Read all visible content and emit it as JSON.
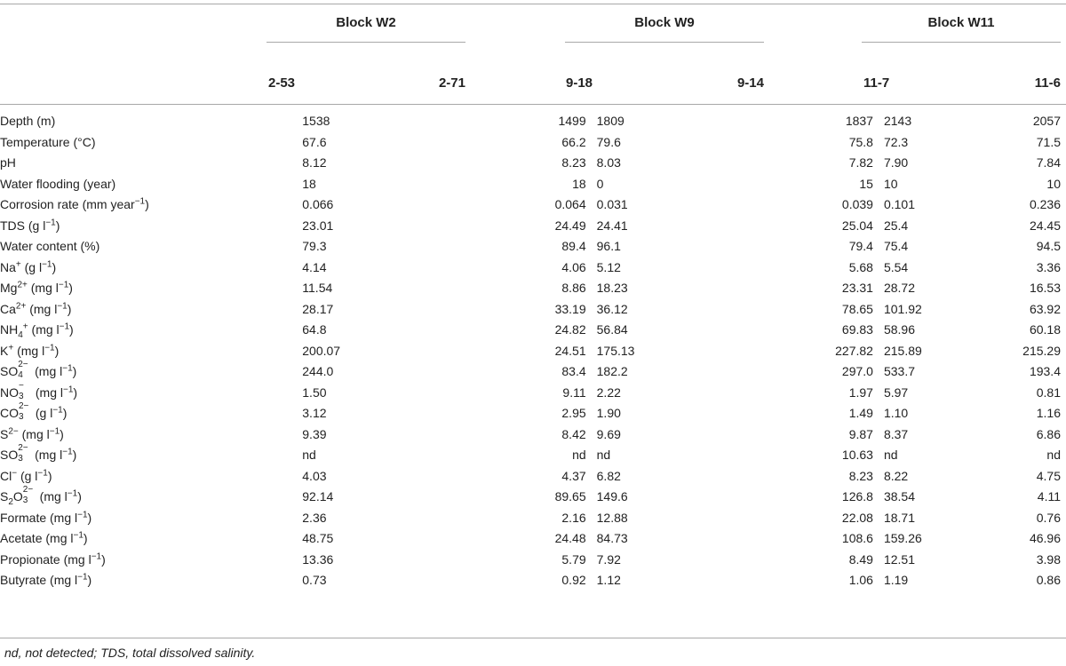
{
  "groups": [
    {
      "label": "Block W2",
      "cols": [
        "2-53",
        "2-71"
      ]
    },
    {
      "label": "Block W9",
      "cols": [
        "9-18",
        "9-14"
      ]
    },
    {
      "label": "Block W11",
      "cols": [
        "11-7",
        "11-6"
      ]
    }
  ],
  "rows": [
    {
      "name": "Depth (m)",
      "values": [
        "1538",
        "1499",
        "1809",
        "1837",
        "2143",
        "2057"
      ]
    },
    {
      "name": "Temperature (°C)",
      "values": [
        "67.6",
        "66.2",
        "79.6",
        "75.8",
        "72.3",
        "71.5"
      ]
    },
    {
      "name": "pH",
      "values": [
        "8.12",
        "8.23",
        "8.03",
        "7.82",
        "7.90",
        "7.84"
      ]
    },
    {
      "name": "Water flooding (year)",
      "values": [
        "18",
        "18",
        "0",
        "15",
        "10",
        "10"
      ]
    },
    {
      "name_pre": "Corrosion rate (mm year",
      "name_sup": "−1",
      "name_post": ")",
      "values": [
        "0.066",
        "0.064",
        "0.031",
        "0.039",
        "0.101",
        "0.236"
      ]
    },
    {
      "name_pre": "TDS (g l",
      "name_sup": "−1",
      "name_post": ")",
      "values": [
        "23.01",
        "24.49",
        "24.41",
        "25.04",
        "25.4",
        "24.45"
      ]
    },
    {
      "name": "Water content (%)",
      "values": [
        "79.3",
        "89.4",
        "96.1",
        "79.4",
        "75.4",
        "94.5"
      ]
    },
    {
      "ion": "Na",
      "ion_sup": "+",
      "unit_pre": " (g l",
      "unit_sup": "−1",
      "unit_post": ")",
      "values": [
        "4.14",
        "4.06",
        "5.12",
        "5.68",
        "5.54",
        "3.36"
      ]
    },
    {
      "ion": "Mg",
      "ion_sup": "2+",
      "unit_pre": " (mg l",
      "unit_sup": "−1",
      "unit_post": ")",
      "values": [
        "11.54",
        "8.86",
        "18.23",
        "23.31",
        "28.72",
        "16.53"
      ]
    },
    {
      "ion": "Ca",
      "ion_sup": "2+",
      "unit_pre": " (mg l",
      "unit_sup": "−1",
      "unit_post": ")",
      "values": [
        "28.17",
        "33.19",
        "36.12",
        "78.65",
        "101.92",
        "63.92"
      ]
    },
    {
      "ion": "NH",
      "ion_sub": "4",
      "ion_sup": "+",
      "unit_pre": " (mg l",
      "unit_sup": "−1",
      "unit_post": ")",
      "values": [
        "64.8",
        "24.82",
        "56.84",
        "69.83",
        "58.96",
        "60.18"
      ]
    },
    {
      "ion": "K",
      "ion_sup": "+",
      "unit_pre": " (mg l",
      "unit_sup": "−1",
      "unit_post": ")",
      "values": [
        "200.07",
        "24.51",
        "175.13",
        "227.82",
        "215.89",
        "215.29"
      ]
    },
    {
      "ion": "SO",
      "stack_sup": "2−",
      "stack_sub": "4",
      "unit_pre": " (mg l",
      "unit_sup": "−1",
      "unit_post": ")",
      "values": [
        "244.0",
        "83.4",
        "182.2",
        "297.0",
        "533.7",
        "193.4"
      ]
    },
    {
      "ion": "NO",
      "stack_sup": "−",
      "stack_sub": "3",
      "unit_pre": " (mg l",
      "unit_sup": "−1",
      "unit_post": ")",
      "values": [
        "1.50",
        "9.11",
        "2.22",
        "1.97",
        "5.97",
        "0.81"
      ]
    },
    {
      "ion": "CO",
      "stack_sup": "2−",
      "stack_sub": "3",
      "unit_pre": " (g l",
      "unit_sup": "−1",
      "unit_post": ")",
      "values": [
        "3.12",
        "2.95",
        "1.90",
        "1.49",
        "1.10",
        "1.16"
      ]
    },
    {
      "ion": "S",
      "ion_sup": "2−",
      "unit_pre": " (mg l",
      "unit_sup": "−1",
      "unit_post": ")",
      "values": [
        "9.39",
        "8.42",
        "9.69",
        "9.87",
        "8.37",
        "6.86"
      ]
    },
    {
      "ion": "SO",
      "stack_sup": "2−",
      "stack_sub": "3",
      "unit_pre": " (mg l",
      "unit_sup": "−1",
      "unit_post": ")",
      "values": [
        "nd",
        "nd",
        "nd",
        "10.63",
        "nd",
        "nd"
      ]
    },
    {
      "ion": "Cl",
      "ion_sup": "−",
      "unit_pre": " (g l",
      "unit_sup": "−1",
      "unit_post": ")",
      "values": [
        "4.03",
        "4.37",
        "6.82",
        "8.23",
        "8.22",
        "4.75"
      ]
    },
    {
      "ion": "S",
      "ion_sub": "2",
      "ion_mid": "O",
      "stack_sup": "2−",
      "stack_sub": "3",
      "unit_pre": " (mg l",
      "unit_sup": "−1",
      "unit_post": ")",
      "values": [
        "92.14",
        "89.65",
        "149.6",
        "126.8",
        "38.54",
        "4.11"
      ]
    },
    {
      "name_pre": "Formate (mg l",
      "name_sup": "−1",
      "name_post": ")",
      "values": [
        "2.36",
        "2.16",
        "12.88",
        "22.08",
        "18.71",
        "0.76"
      ]
    },
    {
      "name_pre": "Acetate (mg l",
      "name_sup": "−1",
      "name_post": ")",
      "values": [
        "48.75",
        "24.48",
        "84.73",
        "108.6",
        "159.26",
        "46.96"
      ]
    },
    {
      "name_pre": "Propionate (mg l",
      "name_sup": "−1",
      "name_post": ")",
      "values": [
        "13.36",
        "5.79",
        "7.92",
        "8.49",
        "12.51",
        "3.98"
      ]
    },
    {
      "name_pre": "Butyrate (mg l",
      "name_sup": "−1",
      "name_post": ")",
      "values": [
        "0.73",
        "0.92",
        "1.12",
        "1.06",
        "1.19",
        "0.86"
      ]
    }
  ],
  "footnote": "nd, not detected; TDS, total dissolved salinity."
}
